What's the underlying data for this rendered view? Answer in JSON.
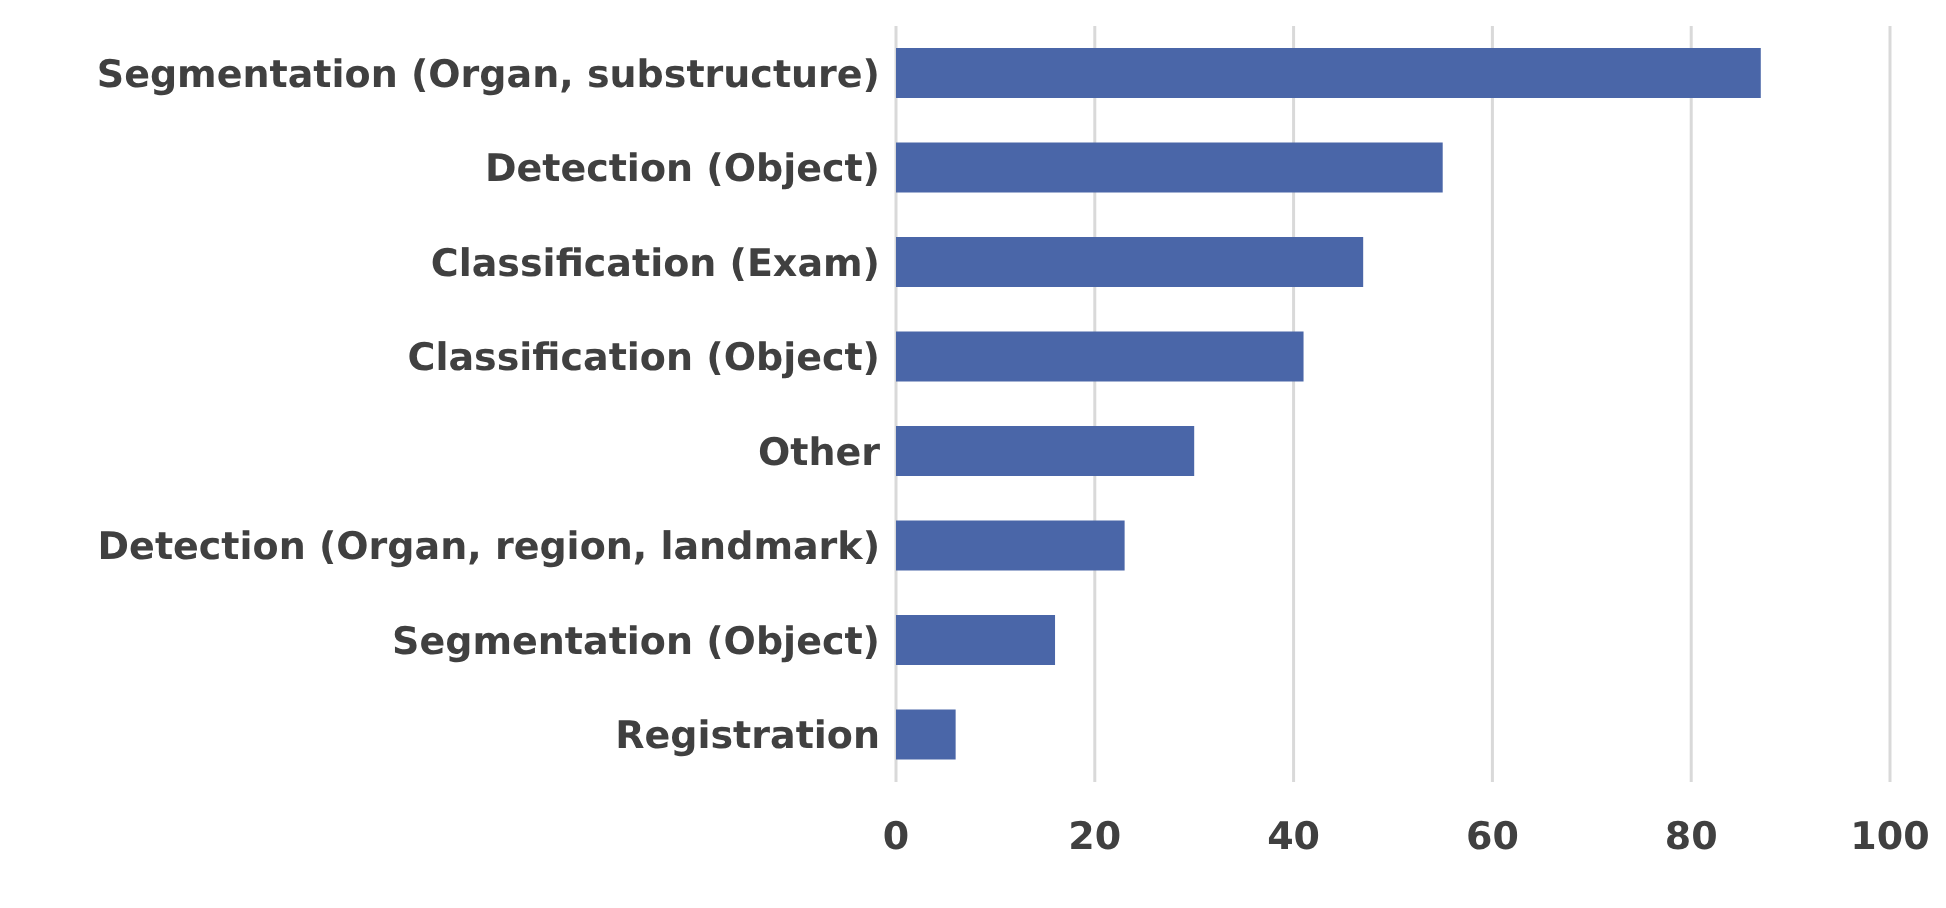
{
  "chart_data": {
    "type": "bar",
    "orientation": "horizontal",
    "categories": [
      "Segmentation (Organ, substructure)",
      "Detection (Object)",
      "Classification (Exam)",
      "Classification (Object)",
      "Other",
      "Detection (Organ, region, landmark)",
      "Segmentation (Object)",
      "Registration"
    ],
    "values": [
      87,
      55,
      47,
      41,
      30,
      23,
      16,
      6
    ],
    "color": "#4a66a8",
    "xlim": [
      0,
      100
    ],
    "xticks": [
      0,
      20,
      40,
      60,
      80,
      100
    ],
    "grid": "x",
    "legend": false
  }
}
